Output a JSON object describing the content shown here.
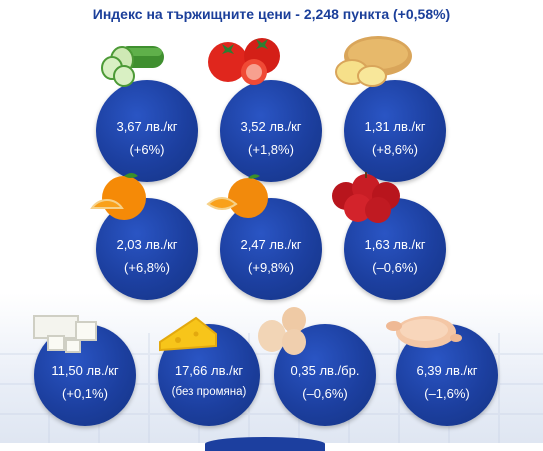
{
  "title": "Индекс на тържищните цени - 2,248 пункта (+0,58%)",
  "items": [
    {
      "icon": "cucumber-icon",
      "price": "3,67 лв./кг",
      "change": "(+6%)"
    },
    {
      "icon": "tomato-icon",
      "price": "3,52 лв./кг",
      "change": "(+1,8%)"
    },
    {
      "icon": "potato-icon",
      "price": "1,31 лв./кг",
      "change": "(+8,6%)"
    },
    {
      "icon": "orange-icon",
      "price": "2,03 лв./кг",
      "change": "(+6,8%)"
    },
    {
      "icon": "tangerine-icon",
      "price": "2,47 лв./кг",
      "change": "(+9,8%)"
    },
    {
      "icon": "apple-icon",
      "price": "1,63 лв./кг",
      "change": "(–0,6%)"
    },
    {
      "icon": "white-cheese-icon",
      "price": "11,50 лв./кг",
      "change": "(+0,1%)"
    },
    {
      "icon": "yellow-cheese-icon",
      "price": "17,66 лв./кг",
      "change": "(без промяна)"
    },
    {
      "icon": "eggs-icon",
      "price": "0,35 лв./бр.",
      "change": "(–0,6%)"
    },
    {
      "icon": "chicken-icon",
      "price": "6,39 лв./кг",
      "change": "(–1,6%)"
    }
  ],
  "colors": {
    "circle": "#1c3f9f",
    "title": "#1b3f9a"
  }
}
